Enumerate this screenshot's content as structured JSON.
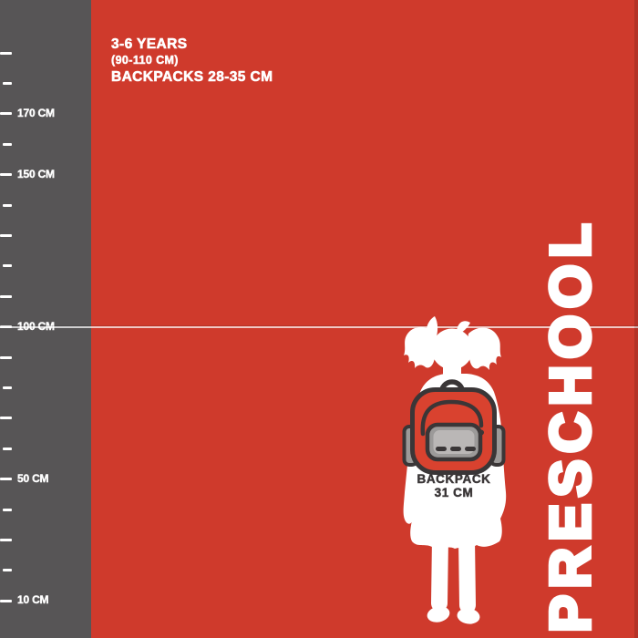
{
  "header": {
    "age": "3-6 YEARS",
    "height_range": "(90-110 CM)",
    "backpacks": "BACKPACKS 28-35 CM"
  },
  "stage_label": "PRESCHOOL",
  "backpack_caption": {
    "line1": "BACKPACK",
    "line2": "31 CM"
  },
  "height_guide": {
    "value_cm": 100,
    "label": "100 CM"
  },
  "ruler": {
    "unit": "CM",
    "ticks": [
      {
        "cm": 190,
        "label": ""
      },
      {
        "cm": 180,
        "label": ""
      },
      {
        "cm": 170,
        "label": "170 CM"
      },
      {
        "cm": 160,
        "label": ""
      },
      {
        "cm": 150,
        "label": "150 CM"
      },
      {
        "cm": 140,
        "label": ""
      },
      {
        "cm": 130,
        "label": ""
      },
      {
        "cm": 120,
        "label": ""
      },
      {
        "cm": 110,
        "label": ""
      },
      {
        "cm": 100,
        "label": "100 CM"
      },
      {
        "cm": 90,
        "label": ""
      },
      {
        "cm": 80,
        "label": ""
      },
      {
        "cm": 70,
        "label": ""
      },
      {
        "cm": 60,
        "label": ""
      },
      {
        "cm": 50,
        "label": "50 CM"
      },
      {
        "cm": 40,
        "label": ""
      },
      {
        "cm": 30,
        "label": ""
      },
      {
        "cm": 20,
        "label": ""
      },
      {
        "cm": 10,
        "label": "10 CM"
      }
    ]
  },
  "figure": {
    "description": "preschool girl silhouette with backpack"
  },
  "colors": {
    "background_red": "#cf3a2c",
    "ruler_gray": "#575556",
    "white": "#ffffff",
    "outline_dark": "#3a3637",
    "backpack_red": "#d9422f",
    "pocket_gray": "#9c9a99",
    "pocket_inner_gray": "#bab7b6"
  }
}
